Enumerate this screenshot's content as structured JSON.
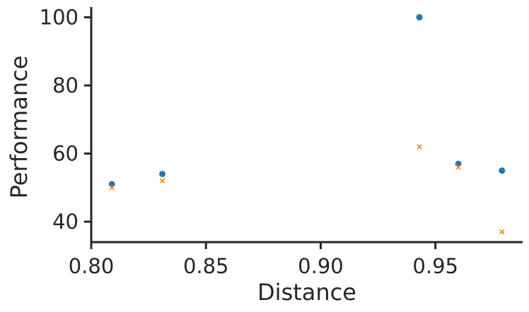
{
  "chart_data": {
    "type": "scatter",
    "title": "",
    "xlabel": "Distance",
    "ylabel": "Performance",
    "xlim": [
      0.8,
      0.988
    ],
    "ylim": [
      34,
      103
    ],
    "xticks": [
      0.8,
      0.85,
      0.9,
      0.95
    ],
    "xtick_labels": [
      "0.80",
      "0.85",
      "0.90",
      "0.95"
    ],
    "yticks": [
      40,
      60,
      80,
      100
    ],
    "ytick_labels": [
      "40",
      "60",
      "80",
      "100"
    ],
    "grid": false,
    "legend": null,
    "series": [
      {
        "marker": "circle",
        "color": "#1f77b4",
        "x": [
          0.809,
          0.831,
          0.943,
          0.96,
          0.979
        ],
        "y": [
          51,
          54,
          100,
          57,
          55
        ]
      },
      {
        "marker": "x",
        "color": "#ff7f0e",
        "x": [
          0.809,
          0.831,
          0.943,
          0.96,
          0.979
        ],
        "y": [
          50,
          52,
          62,
          56,
          37
        ]
      }
    ]
  }
}
